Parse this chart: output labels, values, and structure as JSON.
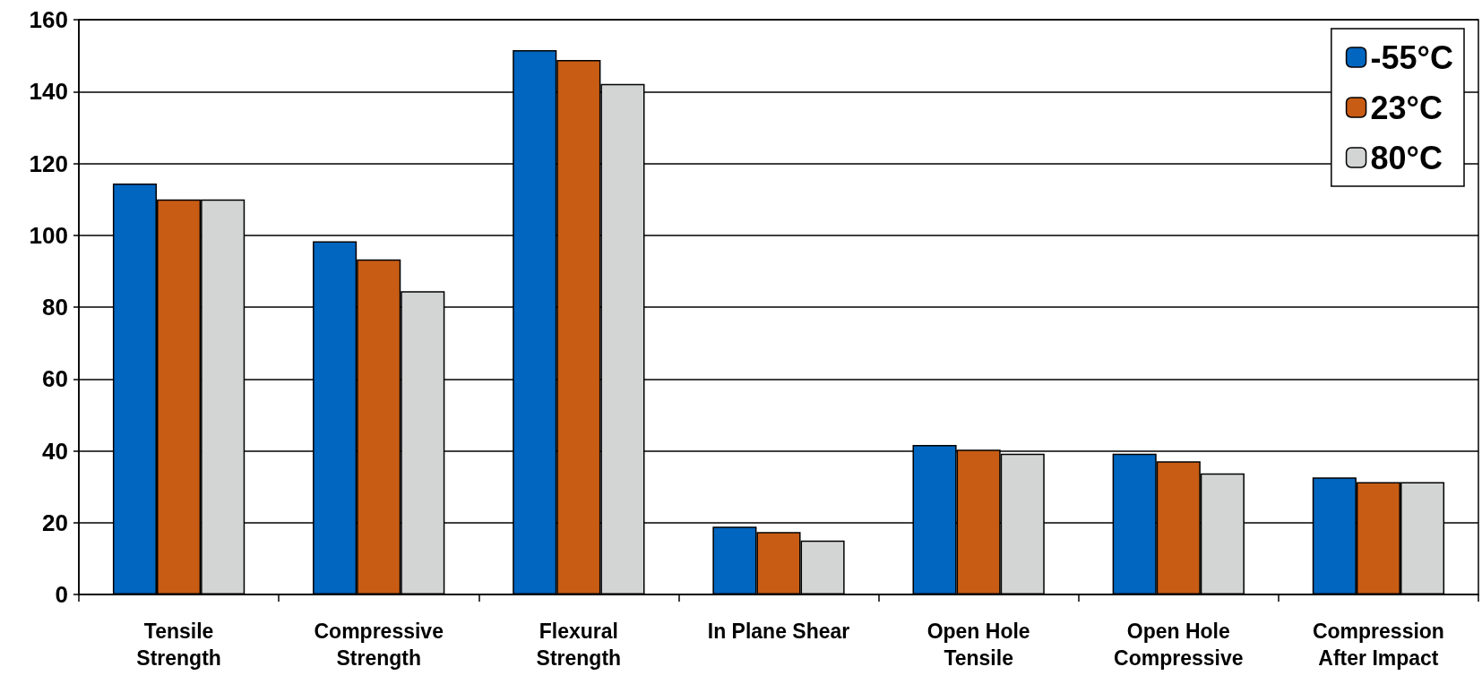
{
  "chart_data": {
    "type": "bar",
    "categories": [
      "Tensile\nStrength",
      "Compressive\nStrength",
      "Flexural\nStrength",
      "In Plane Shear",
      "Open Hole\nTensile",
      "Open Hole\nCompressive",
      "Compression\nAfter Impact"
    ],
    "series": [
      {
        "name": "-55°C",
        "color": "#0066c0",
        "values": [
          114.4,
          98.3,
          151.5,
          18.9,
          41.6,
          39.2,
          32.6
        ]
      },
      {
        "name": "23°C",
        "color": "#c85c14",
        "values": [
          110,
          93.3,
          148.8,
          17.4,
          40.3,
          37.1,
          31.3
        ]
      },
      {
        "name": "80°C",
        "color": "#d3d5d5",
        "values": [
          110,
          84.4,
          142.1,
          15,
          39.2,
          33.7,
          31.3
        ]
      }
    ],
    "ylim": [
      0,
      160
    ],
    "yticks": [
      0,
      20,
      40,
      60,
      80,
      100,
      120,
      140,
      160
    ],
    "grid": "y",
    "legend": "top right"
  }
}
